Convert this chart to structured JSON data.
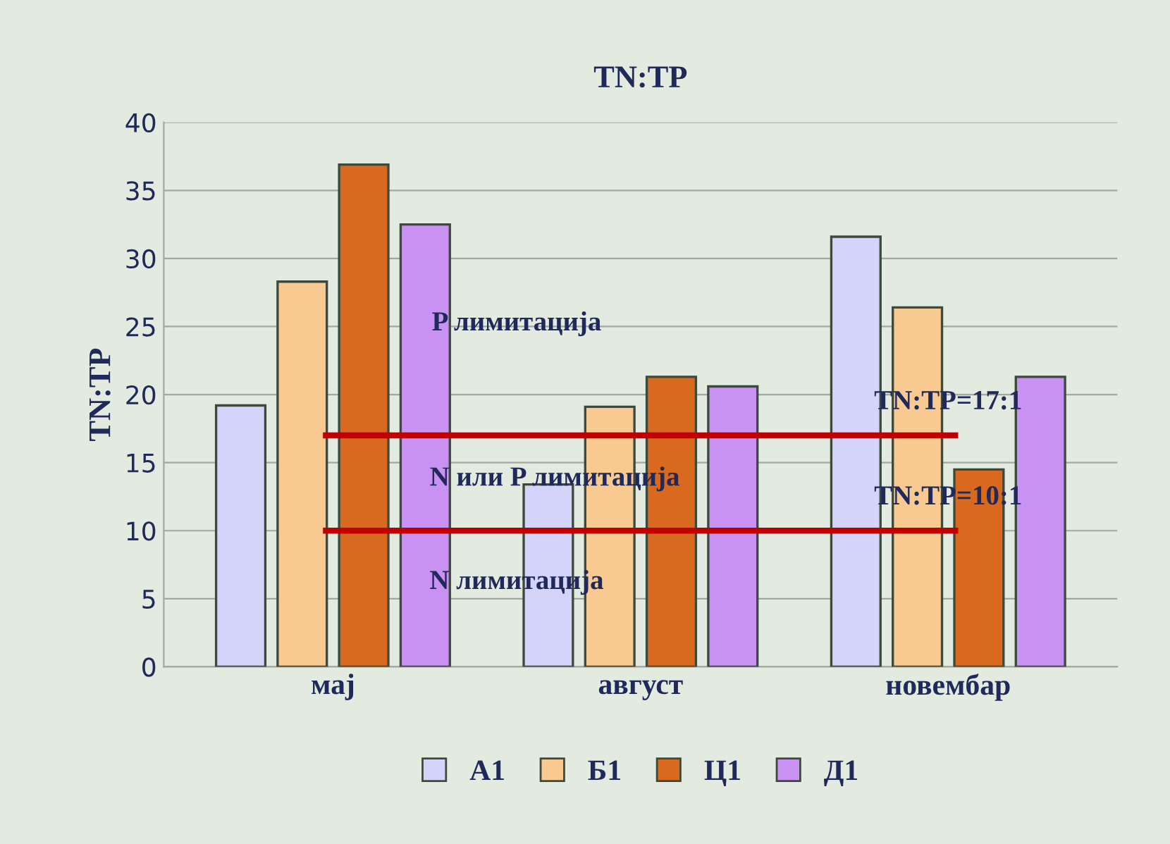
{
  "chart_data": {
    "type": "bar",
    "title": "TN:TP",
    "ylabel": "TN:TP",
    "categories": [
      "мај",
      "август",
      "новембар"
    ],
    "series": [
      {
        "name": "А1",
        "color": "#d4d4fa",
        "values": [
          19.2,
          13.4,
          31.6
        ]
      },
      {
        "name": "Б1",
        "color": "#f9c992",
        "values": [
          28.3,
          19.1,
          26.4
        ]
      },
      {
        "name": "Ц1",
        "color": "#d9691f",
        "values": [
          36.9,
          21.3,
          14.5
        ]
      },
      {
        "name": "Д1",
        "color": "#c992f2",
        "values": [
          32.5,
          20.6,
          21.3
        ]
      }
    ],
    "ylim": [
      0,
      40
    ],
    "yticks": [
      0,
      5,
      10,
      15,
      20,
      25,
      30,
      35,
      40
    ],
    "grid": "y",
    "legend": "bottom",
    "ref_lines": [
      {
        "axis": "y",
        "value": 17,
        "label": "TN:TP=17:1",
        "color": "#c00000"
      },
      {
        "axis": "y",
        "value": 10,
        "label": "TN:TP=10:1",
        "color": "#c00000"
      }
    ],
    "annotations": [
      "P лимитација",
      "N или P лимитација",
      "N лимитација"
    ]
  }
}
